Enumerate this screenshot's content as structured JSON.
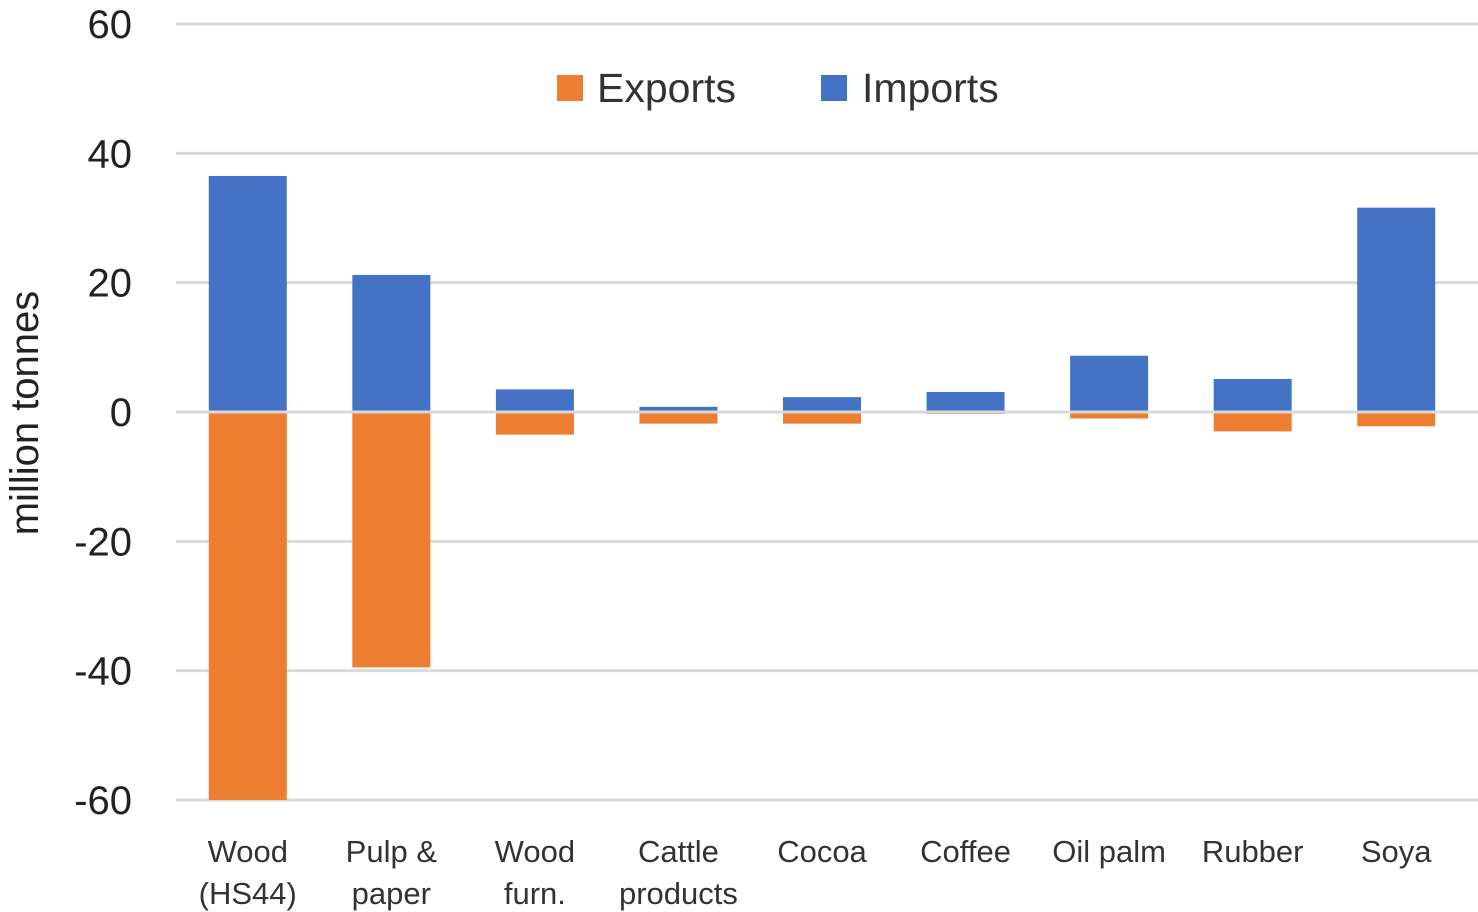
{
  "chart_data": {
    "type": "bar",
    "stacked": true,
    "ylabel": "million tonnes",
    "xlabel": "",
    "ylim": [
      -60,
      60
    ],
    "yticks": [
      60,
      40,
      20,
      0,
      -20,
      -40,
      -60
    ],
    "grid": true,
    "legend_position": "top-center",
    "categories": [
      [
        "Wood",
        "(HS44)"
      ],
      [
        "Pulp &",
        "paper"
      ],
      [
        "Wood",
        "furn."
      ],
      [
        "Cattle",
        "products"
      ],
      [
        "Cocoa"
      ],
      [
        "Coffee"
      ],
      [
        "Oil palm"
      ],
      [
        "Rubber"
      ],
      [
        "Soya"
      ]
    ],
    "series": [
      {
        "name": "Exports",
        "color": "#ED7D31",
        "values": [
          -60,
          -39.5,
          -3.5,
          -1.8,
          -1.8,
          -0.3,
          -1.0,
          -3.0,
          -2.2
        ]
      },
      {
        "name": "Imports",
        "color": "#4472C4",
        "values": [
          36.5,
          21.2,
          3.5,
          0.8,
          2.3,
          3.1,
          8.7,
          5.1,
          31.6
        ]
      }
    ]
  }
}
